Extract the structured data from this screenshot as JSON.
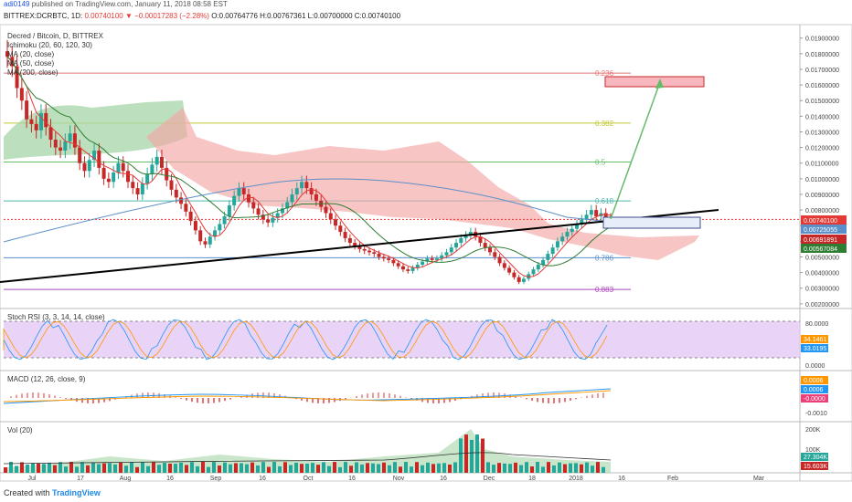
{
  "header": {
    "publisher": "adi0149",
    "published_text": "published on TradingView.com, January 11, 2018 08:58 EST",
    "symbol": "BITTREX:DCRBTC, 1D",
    "price_change": "0.00740100 ▼ −0.00017283 (−2.28%)",
    "ohlc": "O:0.00764776 H:0.00767361 L:0.00700000 C:0.00740100"
  },
  "legend": {
    "title": "Decred / Bitcoin, D, BITTREX",
    "ichimoku": "Ichimoku (20, 60, 120, 30)",
    "ma20": "MA (20, close)",
    "ma50": "MA (50, close)",
    "ma200": "MA (200, close)"
  },
  "panes": {
    "stoch": "Stoch RSI (3, 3, 14, 14, close)",
    "macd": "MACD (12, 26, close, 9)",
    "vol": "Vol (20)"
  },
  "footer": {
    "created_with": "Created with",
    "brand": "TradingView"
  },
  "colors": {
    "up": "#26a69a",
    "down": "#c62828",
    "cloud_red": "#f4a6a6",
    "cloud_green": "#a5d6a7",
    "ma20": "#e53935",
    "ma50": "#2e7d32",
    "ma200": "#5b8fc9",
    "trend": "#000000",
    "arrow": "#66bb6a",
    "stoch_bg": "#e3c8f5",
    "stoch_k": "#2196f3",
    "stoch_d": "#ff9800"
  },
  "chart_data": {
    "type": "candlestick",
    "x_ticks": [
      "Jul",
      "17",
      "Aug",
      "16",
      "Sep",
      "16",
      "Oct",
      "16",
      "Nov",
      "16",
      "Dec",
      "18",
      "2018",
      "16",
      "Feb",
      "Mar"
    ],
    "price_ticks": [
      "0.01900000",
      "0.01800000",
      "0.01700000",
      "0.01600000",
      "0.01500000",
      "0.01400000",
      "0.01300000",
      "0.01200000",
      "0.01100000",
      "0.01000000",
      "0.00900000",
      "0.00800000",
      "0.00700000",
      "0.00600000",
      "0.00500000",
      "0.00400000",
      "0.00300000",
      "0.00200000"
    ],
    "price_labels": [
      {
        "value": 0.007401,
        "text": "0.00740100",
        "color": "#e53935"
      },
      {
        "value": 0.00725055,
        "text": "0.00725055",
        "color": "#5b8fc9"
      },
      {
        "value": 0.00691891,
        "text": "0.00691891",
        "color": "#c62828"
      },
      {
        "value": 0.00567084,
        "text": "0.00567084",
        "color": "#2e7d32"
      }
    ],
    "fib_levels": [
      {
        "label": "0.236",
        "value": 0.01676,
        "color": "#e57373"
      },
      {
        "label": "0.382",
        "value": 0.01356,
        "color": "#c0ca33"
      },
      {
        "label": "0.5",
        "value": 0.01107,
        "color": "#66bb6a"
      },
      {
        "label": "0.618",
        "value": 0.00858,
        "color": "#4db6ac"
      },
      {
        "label": "0.786",
        "value": 0.00495,
        "color": "#5b8fc9"
      },
      {
        "label": "0.883",
        "value": 0.00292,
        "color": "#ab47bc"
      }
    ],
    "price_range": [
      0.0017,
      0.0198
    ],
    "closes": [
      0.0178,
      0.0172,
      0.0158,
      0.015,
      0.0138,
      0.0135,
      0.0131,
      0.0142,
      0.0133,
      0.0125,
      0.012,
      0.0118,
      0.0124,
      0.0129,
      0.012,
      0.011,
      0.0105,
      0.0112,
      0.0118,
      0.0107,
      0.01,
      0.0098,
      0.0104,
      0.011,
      0.0105,
      0.0098,
      0.0094,
      0.009,
      0.0097,
      0.0103,
      0.0109,
      0.0114,
      0.0107,
      0.0099,
      0.0093,
      0.0088,
      0.0084,
      0.0079,
      0.0073,
      0.0067,
      0.006,
      0.0058,
      0.0063,
      0.0067,
      0.0071,
      0.0076,
      0.0083,
      0.0089,
      0.0094,
      0.009,
      0.0085,
      0.0081,
      0.0077,
      0.0074,
      0.0072,
      0.0075,
      0.0078,
      0.0081,
      0.0085,
      0.009,
      0.0094,
      0.0098,
      0.0094,
      0.009,
      0.0086,
      0.0082,
      0.0078,
      0.0074,
      0.007,
      0.0066,
      0.0062,
      0.0059,
      0.0057,
      0.0055,
      0.0054,
      0.0053,
      0.0052,
      0.005,
      0.0049,
      0.0048,
      0.0046,
      0.0044,
      0.0042,
      0.0041,
      0.0043,
      0.0045,
      0.0047,
      0.0049,
      0.0048,
      0.0049,
      0.0051,
      0.0053,
      0.0056,
      0.0059,
      0.0062,
      0.0064,
      0.0066,
      0.0063,
      0.0059,
      0.0056,
      0.0053,
      0.005,
      0.0046,
      0.0043,
      0.004,
      0.0037,
      0.0034,
      0.0036,
      0.0039,
      0.0042,
      0.0045,
      0.0048,
      0.0052,
      0.0056,
      0.006,
      0.0063,
      0.0066,
      0.0068,
      0.0071,
      0.0074,
      0.0077,
      0.008,
      0.0076,
      0.0078,
      0.0075,
      0.0074
    ]
  }
}
